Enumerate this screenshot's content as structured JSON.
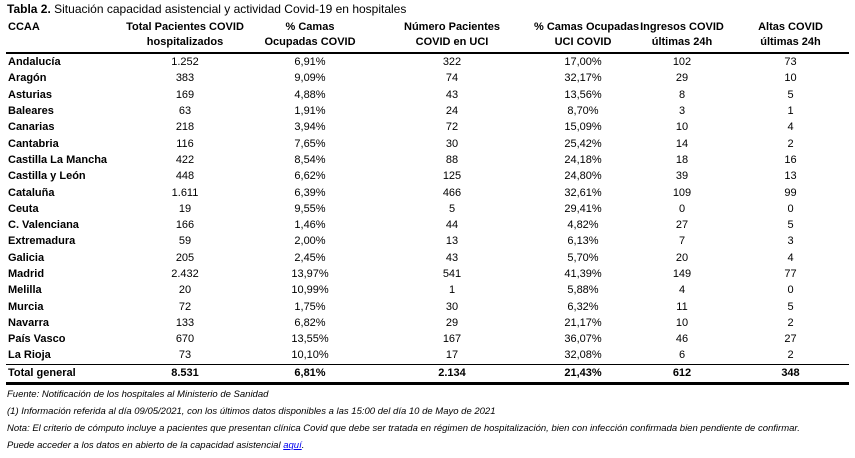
{
  "title": {
    "label": "Tabla 2.",
    "text": "Situación capacidad asistencial y actividad Covid-19 en hospitales"
  },
  "headers": [
    [
      "CCAA",
      ""
    ],
    [
      "Total Pacientes COVID",
      "hospitalizados"
    ],
    [
      "% Camas",
      "Ocupadas COVID"
    ],
    [
      "Número Pacientes",
      "COVID en UCI"
    ],
    [
      "% Camas Ocupadas",
      "UCI COVID"
    ],
    [
      "Ingresos COVID",
      "últimas 24h"
    ],
    [
      "Altas COVID",
      "últimas 24h"
    ]
  ],
  "rows": [
    [
      "Andalucía",
      "1.252",
      "6,91%",
      "322",
      "17,00%",
      "102",
      "73"
    ],
    [
      "Aragón",
      "383",
      "9,09%",
      "74",
      "32,17%",
      "29",
      "10"
    ],
    [
      "Asturias",
      "169",
      "4,88%",
      "43",
      "13,56%",
      "8",
      "5"
    ],
    [
      "Baleares",
      "63",
      "1,91%",
      "24",
      "8,70%",
      "3",
      "1"
    ],
    [
      "Canarias",
      "218",
      "3,94%",
      "72",
      "15,09%",
      "10",
      "4"
    ],
    [
      "Cantabria",
      "116",
      "7,65%",
      "30",
      "25,42%",
      "14",
      "2"
    ],
    [
      "Castilla La Mancha",
      "422",
      "8,54%",
      "88",
      "24,18%",
      "18",
      "16"
    ],
    [
      "Castilla y León",
      "448",
      "6,62%",
      "125",
      "24,80%",
      "39",
      "13"
    ],
    [
      "Cataluña",
      "1.611",
      "6,39%",
      "466",
      "32,61%",
      "109",
      "99"
    ],
    [
      "Ceuta",
      "19",
      "9,55%",
      "5",
      "29,41%",
      "0",
      "0"
    ],
    [
      "C. Valenciana",
      "166",
      "1,46%",
      "44",
      "4,82%",
      "27",
      "5"
    ],
    [
      "Extremadura",
      "59",
      "2,00%",
      "13",
      "6,13%",
      "7",
      "3"
    ],
    [
      "Galicia",
      "205",
      "2,45%",
      "43",
      "5,70%",
      "20",
      "4"
    ],
    [
      "Madrid",
      "2.432",
      "13,97%",
      "541",
      "41,39%",
      "149",
      "77"
    ],
    [
      "Melilla",
      "20",
      "10,99%",
      "1",
      "5,88%",
      "4",
      "0"
    ],
    [
      "Murcia",
      "72",
      "1,75%",
      "30",
      "6,32%",
      "11",
      "5"
    ],
    [
      "Navarra",
      "133",
      "6,82%",
      "29",
      "21,17%",
      "10",
      "2"
    ],
    [
      "País Vasco",
      "670",
      "13,55%",
      "167",
      "36,07%",
      "46",
      "27"
    ],
    [
      "La Rioja",
      "73",
      "10,10%",
      "17",
      "32,08%",
      "6",
      "2"
    ]
  ],
  "total": [
    "Total general",
    "8.531",
    "6,81%",
    "2.134",
    "21,43%",
    "612",
    "348"
  ],
  "notes": {
    "source": "Fuente: Notificación de los hospitales al Ministerio de Sanidad",
    "note1": "(1) Información referida al día 09/05/2021, con los últimos datos disponibles a las 15:00 del día 10 de Mayo de 2021",
    "note2": "Nota: El criterio de cómputo incluye a pacientes que presentan clínica Covid que debe ser tratada en régimen de hospitalización, bien con infección confirmada bien pendiente de confirmar.",
    "access_text": "Puede acceder a los datos en abierto de la capacidad asistencial ",
    "link": "aquí",
    "access_end": "."
  }
}
